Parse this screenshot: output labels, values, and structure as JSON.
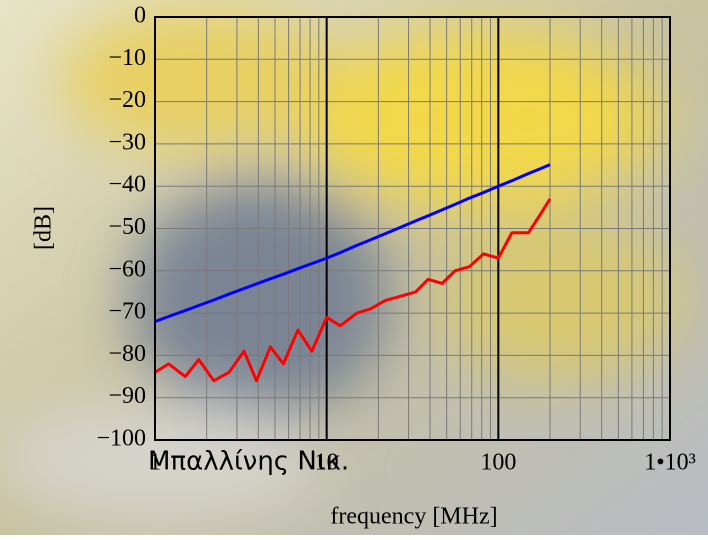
{
  "chart_data": {
    "type": "line",
    "xlabel": "frequency [MHz]",
    "ylabel": "[dB]",
    "watermark": "Μπαλλίνης Νικ.",
    "x": [
      1,
      1.2,
      1.5,
      1.8,
      2.2,
      2.7,
      3.3,
      3.9,
      4.7,
      5.6,
      6.8,
      8.2,
      10,
      12,
      15,
      18,
      22,
      27,
      33,
      39,
      47,
      56,
      68,
      82,
      100,
      120,
      150,
      180,
      200
    ],
    "series": [
      {
        "color": "#0000ff",
        "values": [
          -72,
          -70.8,
          -69.4,
          -68.2,
          -66.9,
          -65.5,
          -64.2,
          -63.1,
          -61.9,
          -60.8,
          -59.5,
          -58.3,
          -57,
          -55.7,
          -54,
          -52.7,
          -51.2,
          -49.7,
          -48.2,
          -47,
          -45.6,
          -44.3,
          -42.8,
          -41.5,
          -40,
          -38.7,
          -37,
          -35.7,
          -34.9
        ]
      },
      {
        "color": "#ff0000",
        "values": [
          -84,
          -82,
          -85,
          -81,
          -86,
          -84,
          -79,
          -86,
          -78,
          -82,
          -74,
          -79,
          -71,
          -73,
          -70,
          -69,
          -67,
          -66,
          -65,
          -62,
          -63,
          -60,
          -59,
          -56,
          -57,
          -51,
          -51,
          -46,
          -43
        ]
      }
    ],
    "xscale": "log",
    "xlim": [
      1,
      1000
    ],
    "xticks": [
      1,
      10,
      100,
      {
        "value": 1000,
        "label": "1•10³"
      }
    ],
    "ylim": [
      -100,
      0
    ],
    "yticks": [
      0,
      {
        "value": -10,
        "label": "−10"
      },
      {
        "value": -20,
        "label": "−20"
      },
      {
        "value": -30,
        "label": "−30"
      },
      {
        "value": -40,
        "label": "−40"
      },
      {
        "value": -50,
        "label": "−50"
      },
      {
        "value": -60,
        "label": "−60"
      },
      {
        "value": -70,
        "label": "−70"
      },
      {
        "value": -80,
        "label": "−80"
      },
      {
        "value": -90,
        "label": "−90"
      },
      {
        "value": -100,
        "label": "−100"
      }
    ],
    "grid": true
  }
}
